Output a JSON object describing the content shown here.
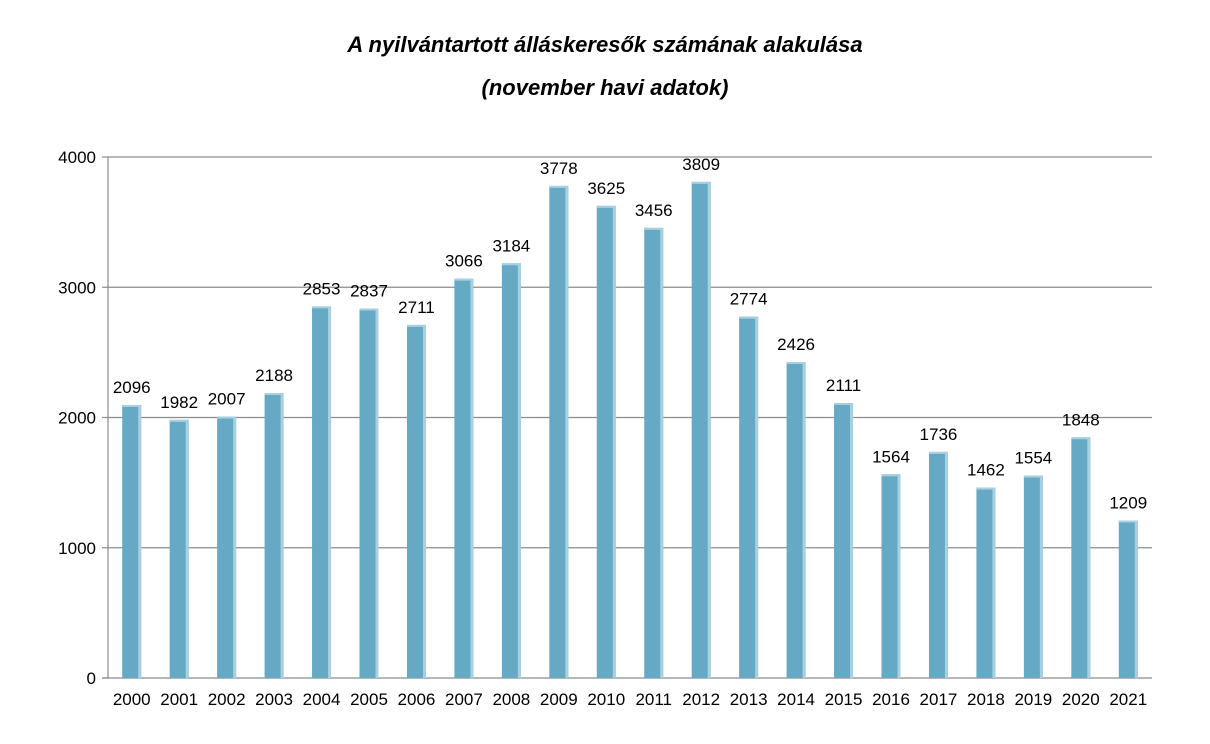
{
  "chart_data": {
    "type": "bar",
    "title": "A nyilvántartott álláskeresők számának alakulása",
    "subtitle": "(november havi adatok)",
    "categories": [
      "2000",
      "2001",
      "2002",
      "2003",
      "2004",
      "2005",
      "2006",
      "2007",
      "2008",
      "2009",
      "2010",
      "2011",
      "2012",
      "2013",
      "2014",
      "2015",
      "2016",
      "2017",
      "2018",
      "2019",
      "2020",
      "2021"
    ],
    "values": [
      2096,
      1982,
      2007,
      2188,
      2853,
      2837,
      2711,
      3066,
      3184,
      3778,
      3625,
      3456,
      3809,
      2774,
      2426,
      2111,
      1564,
      1736,
      1462,
      1554,
      1848,
      1209
    ],
    "ylim": [
      0,
      4000
    ],
    "yticks": [
      0,
      1000,
      2000,
      3000,
      4000
    ],
    "xlabel": "",
    "ylabel": "",
    "grid": true,
    "legend": "none",
    "bar_color": "#65a9c5",
    "bar_highlight_color": "#a9d0e1"
  }
}
